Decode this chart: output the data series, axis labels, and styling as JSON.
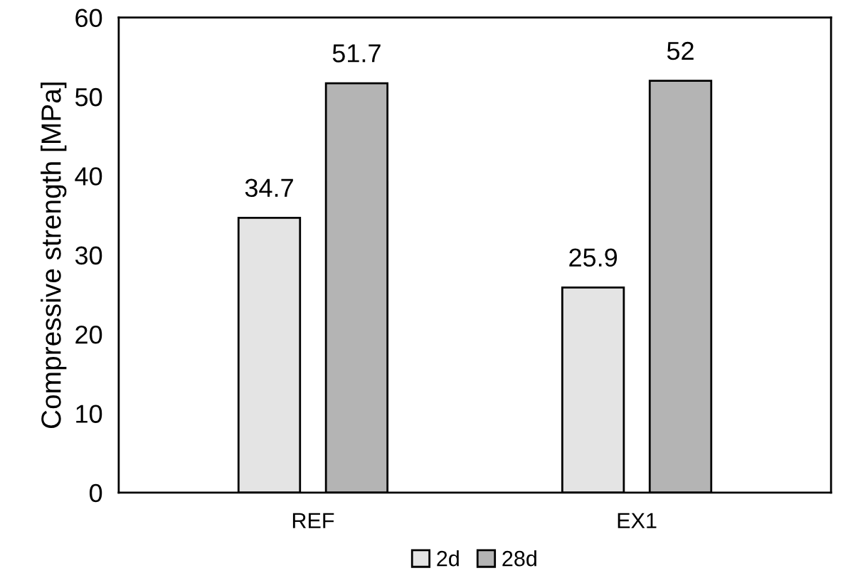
{
  "chart_data": {
    "type": "bar",
    "ylabel": "Compressive strength [MPa]",
    "categories": [
      "REF",
      "EX1"
    ],
    "series": [
      {
        "name": "2d",
        "color": "#e4e4e4",
        "values": [
          34.7,
          25.9
        ]
      },
      {
        "name": "28d",
        "color": "#b4b4b4",
        "values": [
          51.7,
          52
        ]
      }
    ],
    "ylim": [
      0,
      60
    ],
    "yticks": [
      0,
      10,
      20,
      30,
      40,
      50,
      60
    ],
    "data_labels": true,
    "grid": false,
    "legend": "bottom"
  }
}
